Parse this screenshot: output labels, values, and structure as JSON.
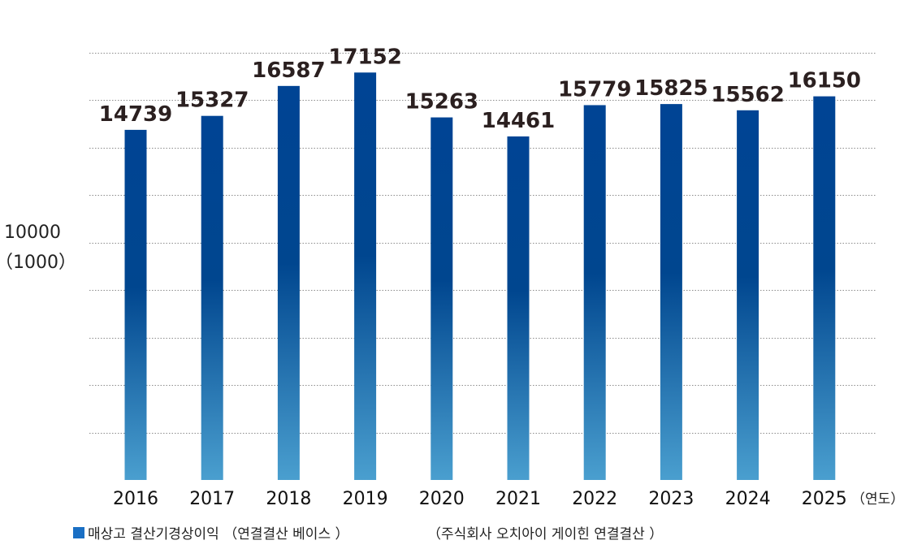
{
  "chart_data": {
    "type": "bar",
    "categories": [
      "2016",
      "2017",
      "2018",
      "2019",
      "2020",
      "2021",
      "2022",
      "2023",
      "2024",
      "2025"
    ],
    "values": [
      14739,
      15327,
      16587,
      17152,
      15263,
      14461,
      15779,
      15825,
      15562,
      16150
    ],
    "series": [
      {
        "name": "매상고 결산기경상이익 （연결결산 베이스 ）",
        "values": [
          14739,
          15327,
          16587,
          17152,
          15263,
          14461,
          15779,
          15825,
          15562,
          16150
        ]
      }
    ],
    "value_labels": [
      "14739",
      "15327",
      "16587",
      "17152",
      "15263",
      "14461",
      "15779",
      "15825",
      "15562",
      "16150"
    ],
    "ylim": [
      0,
      18000
    ],
    "gridlines": [
      2000,
      4000,
      6000,
      8000,
      10000,
      12000,
      14000,
      16000,
      18000
    ],
    "grid": true,
    "grid_style": "dotted",
    "y_axis_text": {
      "line1": "10000",
      "line2": "（1000）"
    },
    "x_unit": "（연도）",
    "legend": {
      "label": "매상고 결산기경상이익 （연결결산 베이스 ）",
      "note": "（주식회사 오치아이 게이힌 연결결산 ）",
      "placement": "bottom-left"
    },
    "colors": {
      "bar_top": "#004494",
      "bar_mid": "#00468f",
      "bar_bottom": "#4a9fcf",
      "legend_marker": "#1a6fc4",
      "grid": "#8c8c8c",
      "value_label": "#2b2020"
    }
  }
}
